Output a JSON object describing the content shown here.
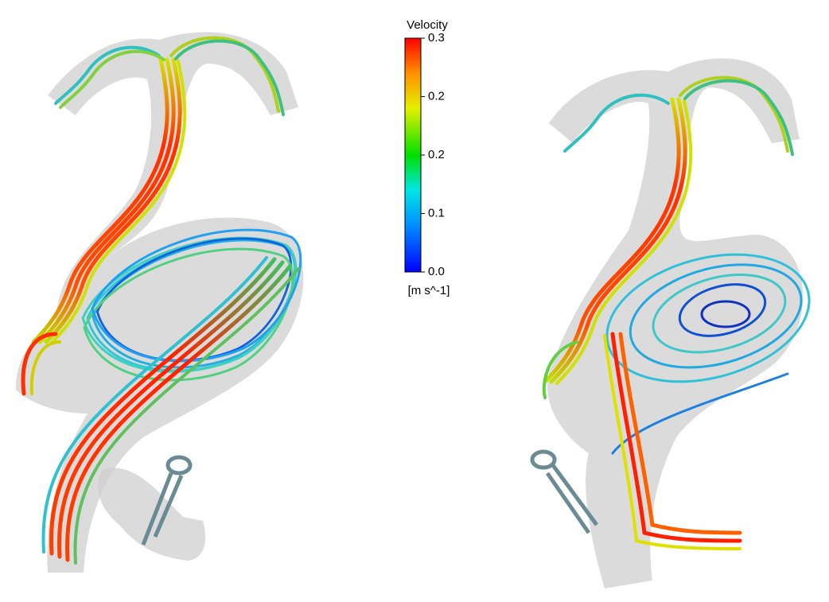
{
  "colorbar": {
    "title": "Velocity",
    "ticks": [
      "0.3",
      "0.2",
      "0.2",
      "0.1",
      "0.0"
    ],
    "unit": "[m s^-1]"
  }
}
